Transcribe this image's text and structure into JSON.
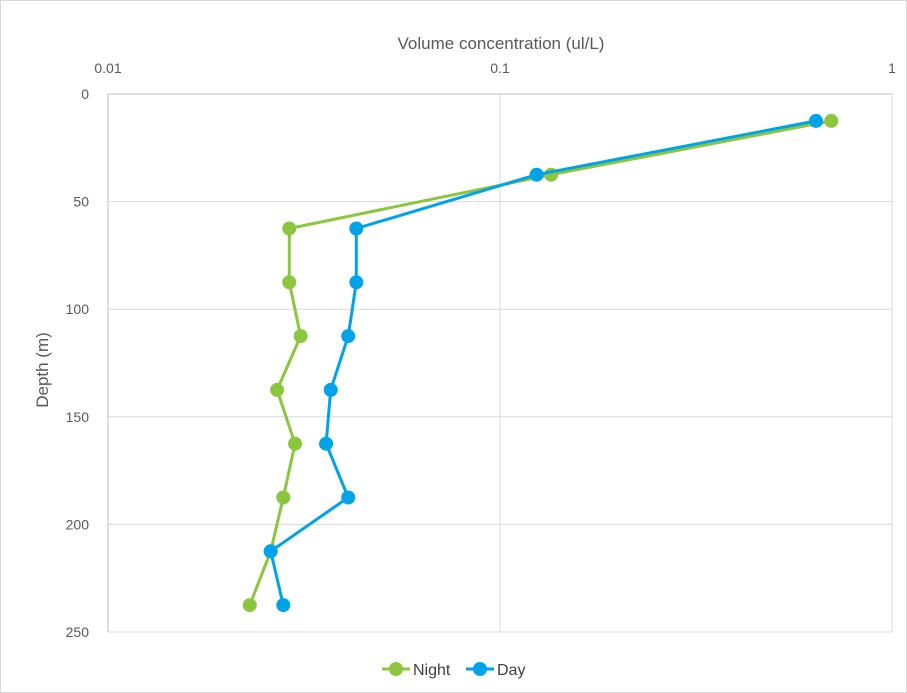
{
  "chart_data": {
    "type": "line",
    "xlabel": "Volume concentration (ul/L)",
    "ylabel": "Depth (m)",
    "x_axis": {
      "scale": "log",
      "position": "top",
      "range": [
        0.01,
        1
      ],
      "ticks": [
        0.01,
        0.1,
        1
      ],
      "tick_labels": [
        "0.01",
        "0.1",
        "1"
      ]
    },
    "y_axis": {
      "reversed": true,
      "range": [
        0,
        250
      ],
      "ticks": [
        0,
        50,
        100,
        150,
        200,
        250
      ],
      "tick_labels": [
        "0",
        "50",
        "100",
        "150",
        "200",
        "250"
      ]
    },
    "grid": true,
    "legend_position": "bottom",
    "series": [
      {
        "name": "Night",
        "color": "#8cc63f",
        "points": [
          {
            "x": 0.7,
            "y": 12.5
          },
          {
            "x": 0.135,
            "y": 37.5
          },
          {
            "x": 0.029,
            "y": 62.5
          },
          {
            "x": 0.029,
            "y": 87.5
          },
          {
            "x": 0.031,
            "y": 112.5
          },
          {
            "x": 0.027,
            "y": 137.5
          },
          {
            "x": 0.03,
            "y": 162.5
          },
          {
            "x": 0.028,
            "y": 187.5
          },
          {
            "x": 0.026,
            "y": 212.5
          },
          {
            "x": 0.023,
            "y": 237.5
          }
        ]
      },
      {
        "name": "Day",
        "color": "#00a2e8",
        "points": [
          {
            "x": 0.64,
            "y": 12.5
          },
          {
            "x": 0.124,
            "y": 37.5
          },
          {
            "x": 0.043,
            "y": 62.5
          },
          {
            "x": 0.043,
            "y": 87.5
          },
          {
            "x": 0.041,
            "y": 112.5
          },
          {
            "x": 0.037,
            "y": 137.5
          },
          {
            "x": 0.036,
            "y": 162.5
          },
          {
            "x": 0.041,
            "y": 187.5
          },
          {
            "x": 0.026,
            "y": 212.5
          },
          {
            "x": 0.028,
            "y": 237.5
          }
        ]
      }
    ]
  }
}
